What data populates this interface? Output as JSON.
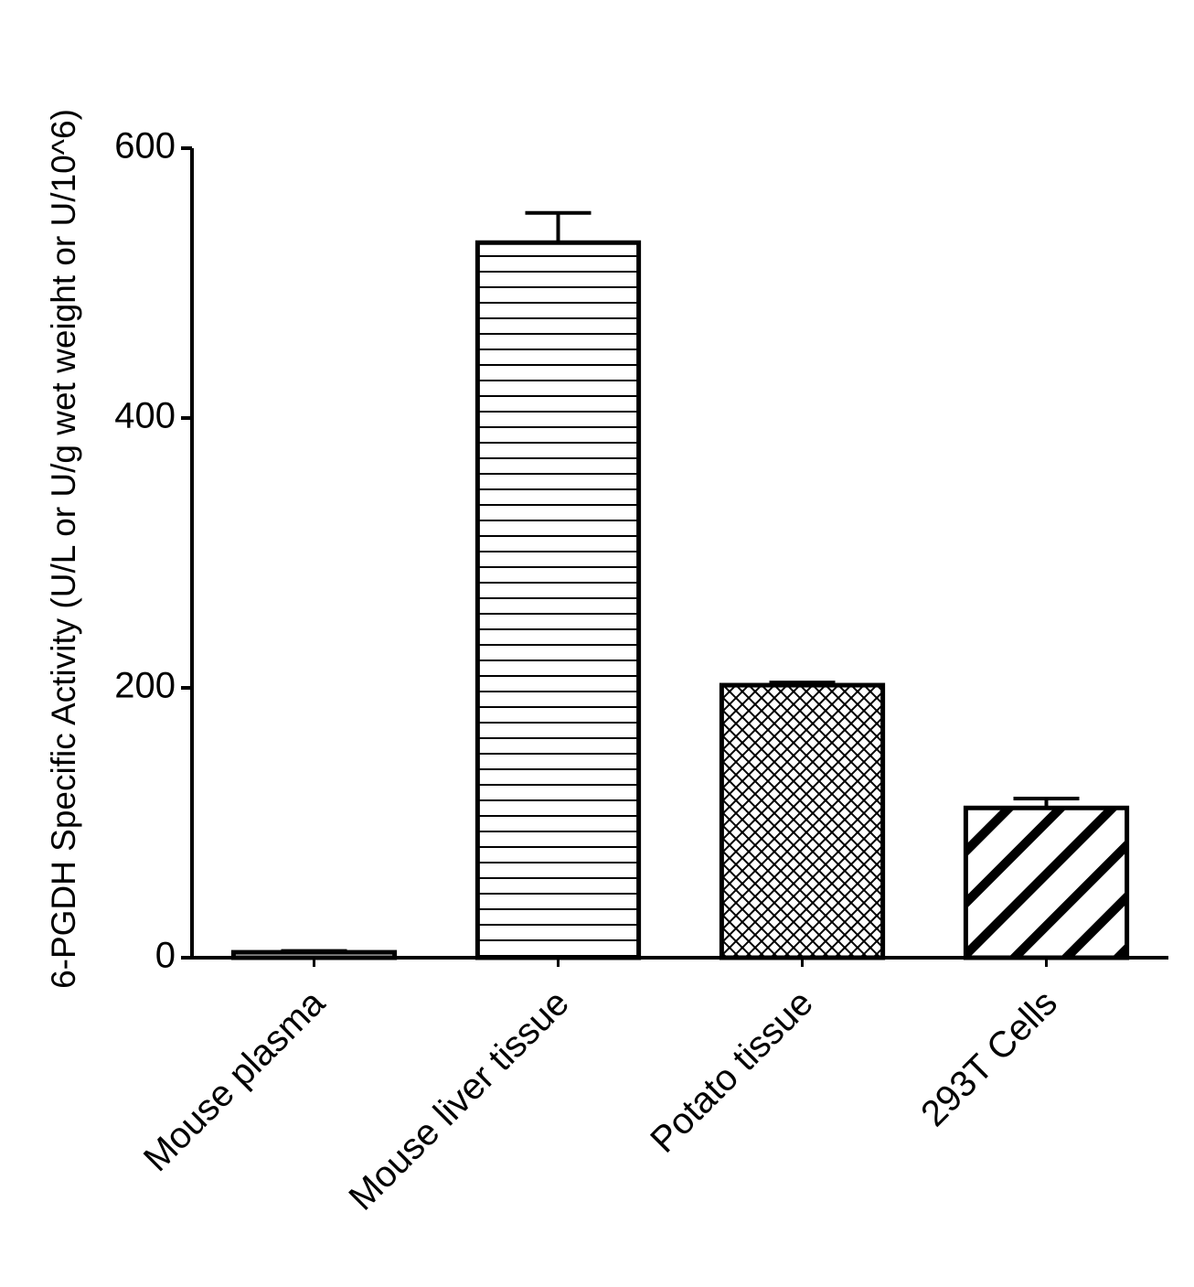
{
  "chart_data": {
    "type": "bar",
    "y_label": "6-PGDH Specific Activity (U/L or U/g wet weight or U/10^6)",
    "categories": [
      "Mouse plasma",
      "Mouse liver tissue",
      "Potato tissue",
      "293T Cells"
    ],
    "values": [
      4,
      530,
      202,
      111
    ],
    "errors": [
      1,
      22,
      2,
      7
    ],
    "color": "#000000",
    "ylim": [
      0,
      600
    ],
    "yticks": [
      0,
      200,
      400,
      600
    ],
    "grid": false
  }
}
